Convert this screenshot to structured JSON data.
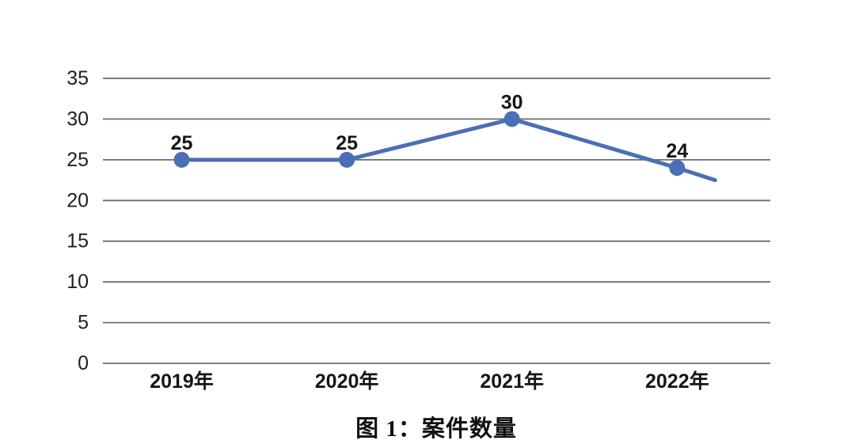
{
  "page": {
    "background_color": "#ffffff"
  },
  "figure": {
    "caption": "图 1：案件数量"
  },
  "chart_data": {
    "type": "line",
    "title": "图 1：案件数量",
    "categories": [
      "2019年",
      "2020年",
      "2021年",
      "2022年"
    ],
    "series": [
      {
        "name": "案件数量",
        "values": [
          25,
          25,
          30,
          24
        ],
        "data_labels": [
          "25",
          "25",
          "30",
          "24"
        ]
      }
    ],
    "trailing_segment": {
      "end_value": 22.5,
      "fraction_of_interval": 0.23
    },
    "xlabel": "",
    "ylabel": "",
    "ylim": [
      0,
      35
    ],
    "yticks": [
      0,
      5,
      10,
      15,
      20,
      25,
      30,
      35
    ],
    "grid": true,
    "legend": "none",
    "colors": {
      "line": "#4a6fb5",
      "marker": "#4a6fb5",
      "gridline": "#6b6b6b",
      "tick_label": "#1f1f1f",
      "data_label": "#161616"
    }
  }
}
